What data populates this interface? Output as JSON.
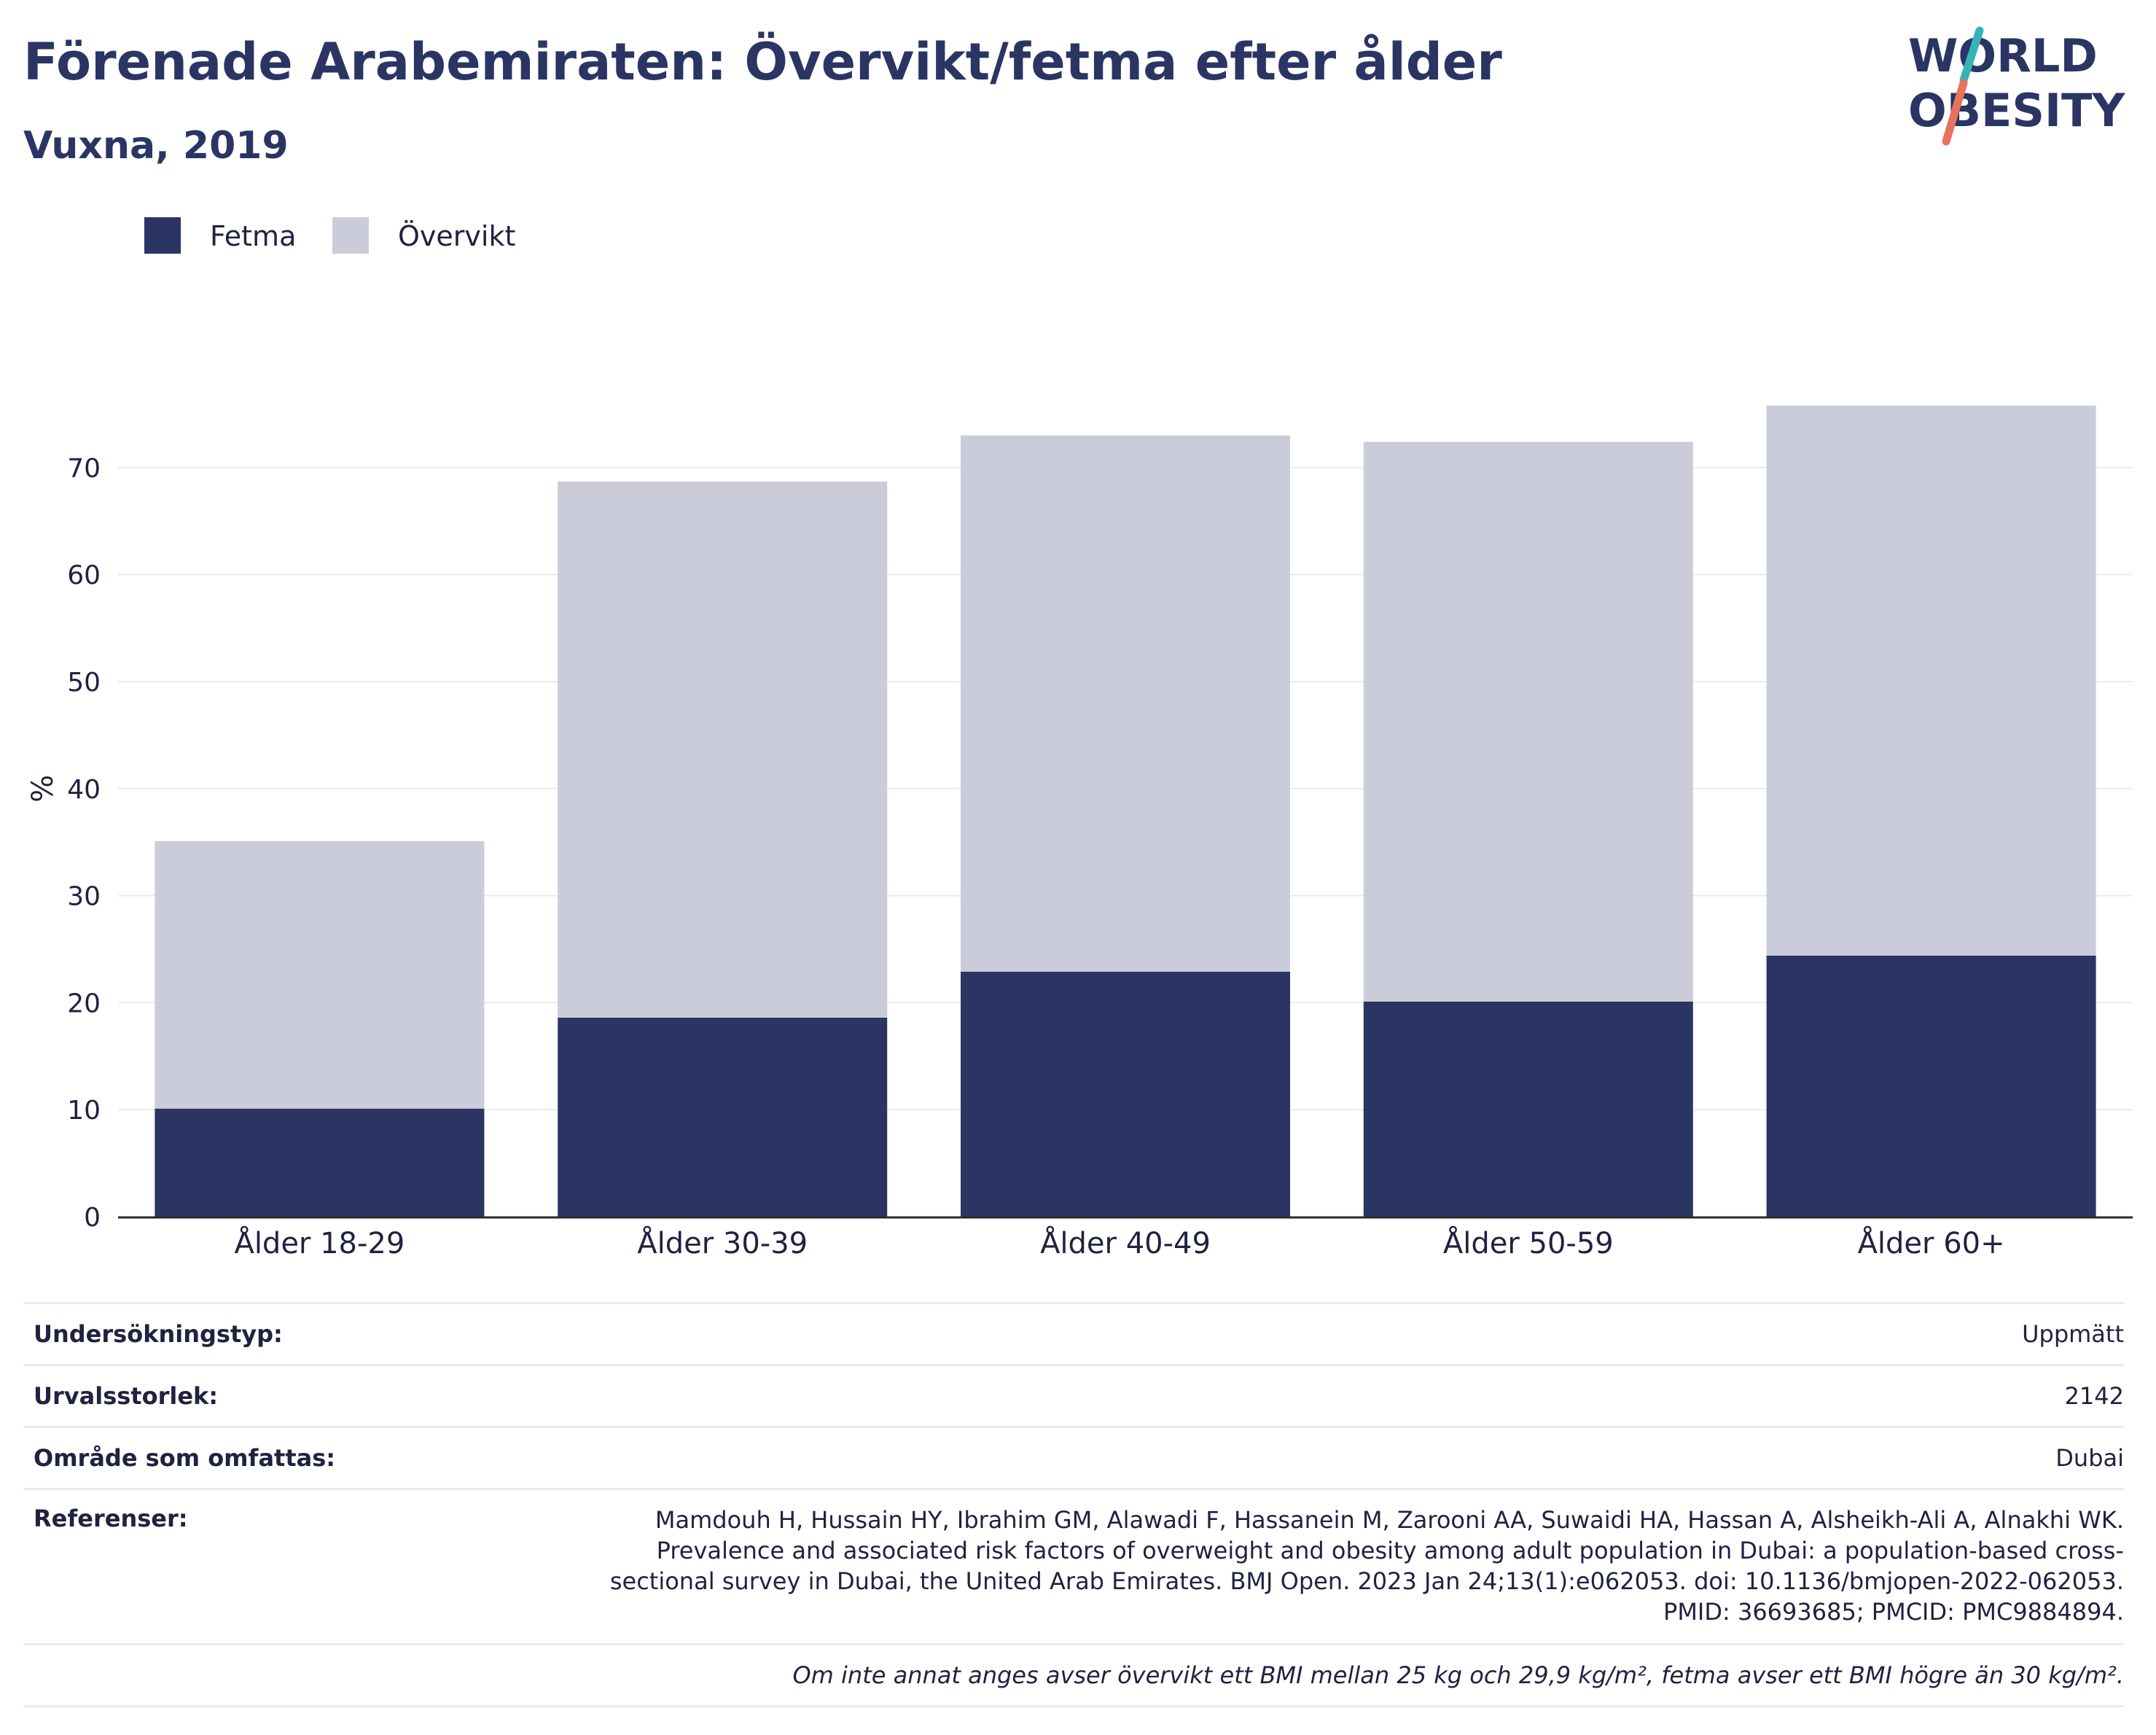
{
  "header": {
    "title": "Förenade Arabemiraten: Övervikt/fetma efter ålder",
    "subtitle": "Vuxna, 2019"
  },
  "logo": {
    "line1": "WORLD",
    "line2": "OBESITY",
    "colors": {
      "text": "#2a3564",
      "slash_top": "#36b3b6",
      "slash_bottom": "#e7735f"
    }
  },
  "legend": {
    "items": [
      {
        "label": "Fetma",
        "color": "#2a3564"
      },
      {
        "label": "Övervikt",
        "color": "#cacdd9"
      }
    ]
  },
  "chart_data": {
    "type": "bar",
    "stacked": true,
    "categories": [
      "Ålder 18-29",
      "Ålder 30-39",
      "Ålder 40-49",
      "Ålder 50-59",
      "Ålder 60+"
    ],
    "series": [
      {
        "name": "Fetma",
        "values": [
          10.1,
          18.6,
          22.9,
          20.1,
          24.4
        ],
        "color": "#2a3564"
      },
      {
        "name": "Övervikt",
        "values": [
          25.0,
          50.1,
          50.1,
          52.3,
          51.4
        ],
        "color": "#cacdd9"
      }
    ],
    "ylabel": "%",
    "yticks": [
      0,
      10,
      20,
      30,
      40,
      50,
      60,
      70
    ],
    "ylim": [
      0,
      80
    ],
    "grid": true,
    "legend_position": "top-left"
  },
  "meta": {
    "rows": [
      {
        "key": "Undersökningstyp:",
        "value": "Uppmätt"
      },
      {
        "key": "Urvalsstorlek:",
        "value": "2142"
      },
      {
        "key": "Område som omfattas:",
        "value": "Dubai"
      }
    ],
    "references": {
      "key": "Referenser:",
      "value": "Mamdouh H, Hussain HY, Ibrahim GM, Alawadi F, Hassanein M, Zarooni AA, Suwaidi HA, Hassan A, Alsheikh-Ali A, Alnakhi WK. Prevalence and associated risk factors of overweight and obesity among adult population in Dubai: a population-based cross-sectional survey in Dubai, the United Arab Emirates. BMJ Open. 2023 Jan 24;13(1):e062053. doi: 10.1136/bmjopen-2022-062053. PMID: 36693685; PMCID: PMC9884894."
    },
    "note": "Om inte annat anges avser övervikt ett BMI mellan 25 kg och 29,9 kg/m², fetma avser ett BMI högre än 30 kg/m²."
  }
}
